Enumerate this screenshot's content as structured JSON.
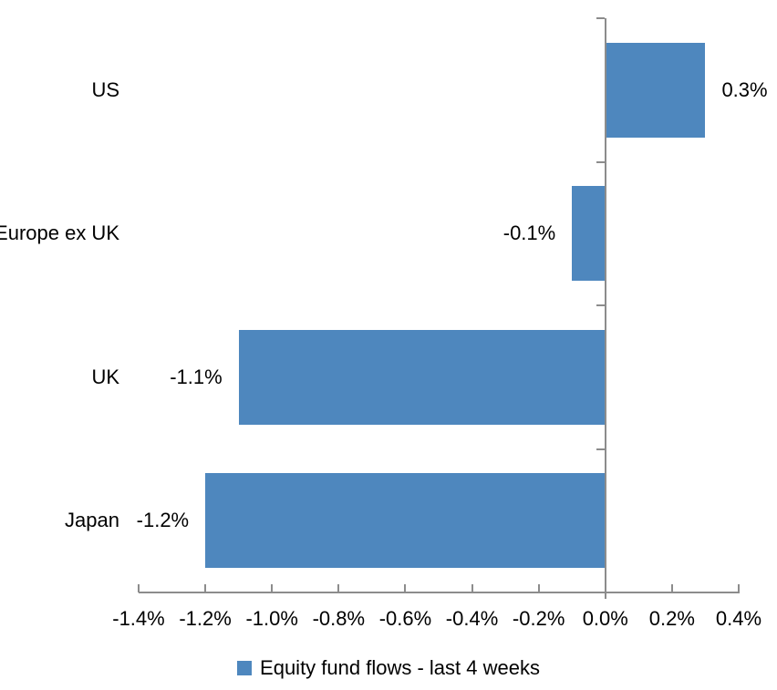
{
  "chart_data": {
    "type": "bar",
    "orientation": "horizontal",
    "title": "",
    "categories": [
      "US",
      "Europe ex UK",
      "UK",
      "Japan"
    ],
    "series": [
      {
        "name": "Equity fund flows - last 4 weeks",
        "values": [
          0.3,
          -0.1,
          -1.1,
          -1.2
        ],
        "labels": [
          "0.3%",
          "-0.1%",
          "-1.1%",
          "-1.2%"
        ],
        "color": "#4E87BE"
      }
    ],
    "xlabel": "",
    "ylabel": "",
    "xlim": [
      -1.4,
      0.4
    ],
    "x_ticks": [
      -1.4,
      -1.2,
      -1.0,
      -0.8,
      -0.6,
      -0.4,
      -0.2,
      0.0,
      0.2,
      0.4
    ],
    "x_tick_labels": [
      "-1.4%",
      "-1.2%",
      "-1.0%",
      "-0.8%",
      "-0.6%",
      "-0.4%",
      "-0.2%",
      "0.0%",
      "0.2%",
      "0.4%"
    ],
    "grid": false,
    "legend_position": "bottom",
    "axis_color": "#8C8C8C",
    "text_color": "#000000",
    "background": "#FFFFFF"
  }
}
